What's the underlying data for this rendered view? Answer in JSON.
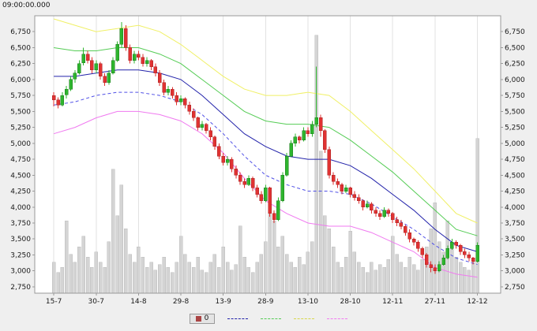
{
  "header": {
    "timestamp": "09:00:00.000"
  },
  "legend": {
    "selected_label": "0",
    "selected_swatch": "#aa4444",
    "line_swatches": [
      {
        "name": "ma-line",
        "color": "#2222aa"
      },
      {
        "name": "upper-band-1sigma",
        "color": "#55cc55"
      },
      {
        "name": "upper-band-2sigma",
        "color": "#d6d64a"
      },
      {
        "name": "lower-band-2sigma",
        "color": "#f07af0"
      }
    ]
  },
  "chart_data": {
    "type": "candlestick",
    "title": "",
    "xlabel": "",
    "ylabel": "",
    "grid": "vertical-only",
    "legend_position": "bottom-center",
    "y_axis": {
      "min": 2650,
      "max": 7000,
      "ticks": [
        2750,
        3000,
        3250,
        3500,
        3750,
        4000,
        4250,
        4500,
        4750,
        5000,
        5250,
        5500,
        5750,
        6000,
        6250,
        6500,
        6750
      ],
      "tick_format": "thousands-comma",
      "sides": [
        "left",
        "right"
      ]
    },
    "x_axis": {
      "tick_indices": [
        0,
        10,
        20,
        30,
        40,
        50,
        60,
        70,
        80,
        90,
        100
      ],
      "tick_labels": [
        "15-7",
        "30-7",
        "14-8",
        "29-8",
        "13-9",
        "28-9",
        "13-10",
        "28-10",
        "12-11",
        "27-11",
        "12-12"
      ]
    },
    "colors": {
      "up": "#2eb52e",
      "up_border": "#1d7a1d",
      "down": "#e03232",
      "down_border": "#a82525",
      "volume": "#d4d4d4",
      "volume_border": "#bdbdbd",
      "gridline": "#e2e2e2",
      "plot_border": "#9a9a9a",
      "plot_bg": "#ffffff",
      "text": "#1a1a1a"
    },
    "candles": [
      [
        5750,
        5800,
        5580,
        5680
      ],
      [
        5680,
        5720,
        5550,
        5600
      ],
      [
        5600,
        5800,
        5580,
        5750
      ],
      [
        5760,
        5900,
        5700,
        5850
      ],
      [
        5850,
        6050,
        5820,
        6000
      ],
      [
        6010,
        6150,
        5950,
        6100
      ],
      [
        6100,
        6300,
        6080,
        6250
      ],
      [
        6260,
        6500,
        6220,
        6400
      ],
      [
        6400,
        6450,
        6250,
        6300
      ],
      [
        6300,
        6350,
        6100,
        6150
      ],
      [
        6150,
        6300,
        6100,
        6250
      ],
      [
        6250,
        6280,
        6000,
        6050
      ],
      [
        6050,
        6100,
        5900,
        5950
      ],
      [
        5950,
        6150,
        5920,
        6100
      ],
      [
        6100,
        6350,
        6080,
        6300
      ],
      [
        6300,
        6600,
        6280,
        6550
      ],
      [
        6550,
        6900,
        6500,
        6800
      ],
      [
        6800,
        6850,
        6450,
        6500
      ],
      [
        6500,
        6550,
        6250,
        6300
      ],
      [
        6300,
        6450,
        6250,
        6400
      ],
      [
        6400,
        6450,
        6300,
        6350
      ],
      [
        6350,
        6400,
        6200,
        6250
      ],
      [
        6250,
        6350,
        6200,
        6300
      ],
      [
        6300,
        6320,
        6150,
        6200
      ],
      [
        6200,
        6250,
        6050,
        6100
      ],
      [
        6100,
        6150,
        5900,
        5950
      ],
      [
        5950,
        6000,
        5750,
        5800
      ],
      [
        5800,
        5900,
        5750,
        5850
      ],
      [
        5850,
        5880,
        5700,
        5750
      ],
      [
        5750,
        5800,
        5600,
        5650
      ],
      [
        5650,
        5750,
        5600,
        5700
      ],
      [
        5700,
        5720,
        5550,
        5600
      ],
      [
        5600,
        5650,
        5450,
        5500
      ],
      [
        5500,
        5550,
        5350,
        5400
      ],
      [
        5400,
        5420,
        5200,
        5250
      ],
      [
        5250,
        5350,
        5200,
        5300
      ],
      [
        5300,
        5320,
        5150,
        5200
      ],
      [
        5200,
        5250,
        5050,
        5100
      ],
      [
        5100,
        5120,
        4900,
        4950
      ],
      [
        4950,
        5000,
        4750,
        4800
      ],
      [
        4800,
        4850,
        4650,
        4700
      ],
      [
        4700,
        4800,
        4650,
        4750
      ],
      [
        4750,
        4780,
        4550,
        4600
      ],
      [
        4600,
        4650,
        4450,
        4500
      ],
      [
        4500,
        4550,
        4350,
        4400
      ],
      [
        4400,
        4450,
        4300,
        4350
      ],
      [
        4350,
        4500,
        4330,
        4450
      ],
      [
        4450,
        4480,
        4250,
        4300
      ],
      [
        4300,
        4350,
        4150,
        4200
      ],
      [
        4200,
        4250,
        4050,
        4100
      ],
      [
        4100,
        4350,
        4080,
        4300
      ],
      [
        4300,
        4320,
        3850,
        3900
      ],
      [
        3900,
        3950,
        3750,
        3800
      ],
      [
        3800,
        4150,
        3780,
        4100
      ],
      [
        4100,
        4550,
        4080,
        4500
      ],
      [
        4500,
        4850,
        4480,
        4800
      ],
      [
        4800,
        5050,
        4780,
        5000
      ],
      [
        5000,
        5150,
        4950,
        5100
      ],
      [
        5100,
        5120,
        5000,
        5050
      ],
      [
        5050,
        5250,
        5030,
        5200
      ],
      [
        5200,
        5250,
        5100,
        5150
      ],
      [
        5150,
        5350,
        5100,
        5300
      ],
      [
        5300,
        6200,
        5250,
        5400
      ],
      [
        5400,
        5450,
        5100,
        5200
      ],
      [
        5200,
        5220,
        4850,
        4900
      ],
      [
        4900,
        4950,
        4450,
        4500
      ],
      [
        4500,
        4550,
        4350,
        4400
      ],
      [
        4400,
        4450,
        4300,
        4350
      ],
      [
        4350,
        4380,
        4200,
        4250
      ],
      [
        4250,
        4350,
        4220,
        4300
      ],
      [
        4300,
        4320,
        4150,
        4200
      ],
      [
        4200,
        4250,
        4100,
        4150
      ],
      [
        4150,
        4200,
        4050,
        4100
      ],
      [
        4100,
        4120,
        3950,
        4000
      ],
      [
        4000,
        4100,
        3980,
        4050
      ],
      [
        4050,
        4080,
        3900,
        3950
      ],
      [
        3950,
        4000,
        3850,
        3900
      ],
      [
        3900,
        3950,
        3800,
        3850
      ],
      [
        3850,
        4000,
        3830,
        3950
      ],
      [
        3950,
        3980,
        3850,
        3900
      ],
      [
        3900,
        3920,
        3750,
        3800
      ],
      [
        3800,
        3850,
        3700,
        3750
      ],
      [
        3750,
        3800,
        3650,
        3700
      ],
      [
        3700,
        3720,
        3550,
        3600
      ],
      [
        3600,
        3650,
        3450,
        3500
      ],
      [
        3500,
        3520,
        3400,
        3450
      ],
      [
        3450,
        3480,
        3300,
        3350
      ],
      [
        3350,
        3380,
        3200,
        3250
      ],
      [
        3250,
        3280,
        3050,
        3100
      ],
      [
        3100,
        3150,
        2980,
        3050
      ],
      [
        3050,
        3100,
        2950,
        3000
      ],
      [
        3000,
        3150,
        2980,
        3100
      ],
      [
        3100,
        3250,
        3080,
        3200
      ],
      [
        3200,
        3400,
        3180,
        3350
      ],
      [
        3350,
        3500,
        3330,
        3450
      ],
      [
        3450,
        3480,
        3350,
        3400
      ],
      [
        3400,
        3420,
        3250,
        3300
      ],
      [
        3300,
        3350,
        3200,
        3250
      ],
      [
        3250,
        3300,
        3150,
        3200
      ],
      [
        3200,
        3220,
        3100,
        3150
      ],
      [
        3150,
        3450,
        3130,
        3400
      ]
    ],
    "volume": [
      12,
      8,
      10,
      28,
      15,
      12,
      18,
      22,
      14,
      10,
      16,
      12,
      10,
      20,
      48,
      30,
      42,
      25,
      15,
      12,
      18,
      14,
      10,
      12,
      9,
      11,
      14,
      10,
      8,
      12,
      22,
      15,
      12,
      10,
      14,
      9,
      8,
      12,
      15,
      10,
      18,
      12,
      9,
      11,
      26,
      14,
      10,
      8,
      12,
      15,
      20,
      32,
      28,
      18,
      22,
      15,
      12,
      10,
      14,
      11,
      16,
      20,
      100,
      55,
      30,
      25,
      18,
      12,
      10,
      14,
      24,
      16,
      12,
      10,
      8,
      12,
      9,
      11,
      10,
      13,
      22,
      15,
      12,
      10,
      14,
      11,
      9,
      13,
      18,
      25,
      35,
      20,
      16,
      28,
      18,
      14,
      12,
      10,
      9,
      12,
      60
    ],
    "overlays": [
      {
        "name": "upper-band-2sigma",
        "color": "#f0f066",
        "dash": "",
        "indices": [
          0,
          5,
          10,
          15,
          20,
          25,
          30,
          35,
          40,
          45,
          50,
          55,
          60,
          65,
          70,
          75,
          80,
          85,
          90,
          95,
          100
        ],
        "values": [
          6950,
          6850,
          6750,
          6800,
          6850,
          6750,
          6550,
          6300,
          6050,
          5850,
          5750,
          5750,
          5800,
          5750,
          5500,
          5200,
          4900,
          4600,
          4250,
          3900,
          3750
        ]
      },
      {
        "name": "upper-band-1sigma",
        "color": "#55cc55",
        "dash": "",
        "indices": [
          0,
          5,
          10,
          15,
          20,
          25,
          30,
          35,
          40,
          45,
          50,
          55,
          60,
          65,
          70,
          75,
          80,
          85,
          90,
          95,
          100
        ],
        "values": [
          6500,
          6450,
          6450,
          6500,
          6500,
          6400,
          6250,
          6000,
          5750,
          5500,
          5350,
          5300,
          5300,
          5250,
          5050,
          4800,
          4550,
          4250,
          3950,
          3650,
          3550
        ]
      },
      {
        "name": "ma-line",
        "color": "#2222aa",
        "dash": "",
        "indices": [
          0,
          5,
          10,
          15,
          20,
          25,
          30,
          35,
          40,
          45,
          50,
          55,
          60,
          65,
          70,
          75,
          80,
          85,
          90,
          95,
          100
        ],
        "values": [
          6050,
          6050,
          6100,
          6150,
          6150,
          6100,
          6000,
          5750,
          5450,
          5150,
          4950,
          4800,
          4750,
          4750,
          4650,
          4450,
          4200,
          3950,
          3650,
          3400,
          3300
        ]
      },
      {
        "name": "lower-band-1sigma",
        "color": "#5050e6",
        "dash": "4,3",
        "indices": [
          0,
          5,
          10,
          15,
          20,
          25,
          30,
          35,
          40,
          45,
          50,
          55,
          60,
          65,
          70,
          75,
          80,
          85,
          90,
          95,
          100
        ],
        "values": [
          5600,
          5650,
          5750,
          5800,
          5800,
          5750,
          5650,
          5450,
          5150,
          4800,
          4500,
          4350,
          4250,
          4250,
          4200,
          4050,
          3850,
          3650,
          3400,
          3200,
          3100
        ]
      },
      {
        "name": "lower-band-2sigma",
        "color": "#f07af0",
        "dash": "",
        "indices": [
          0,
          5,
          10,
          15,
          20,
          25,
          30,
          35,
          40,
          45,
          50,
          55,
          60,
          65,
          70,
          75,
          80,
          85,
          90,
          95,
          100
        ],
        "values": [
          5150,
          5250,
          5400,
          5500,
          5500,
          5450,
          5350,
          5150,
          4850,
          4450,
          4100,
          3900,
          3750,
          3700,
          3700,
          3600,
          3450,
          3300,
          3050,
          2950,
          2900
        ]
      }
    ]
  }
}
